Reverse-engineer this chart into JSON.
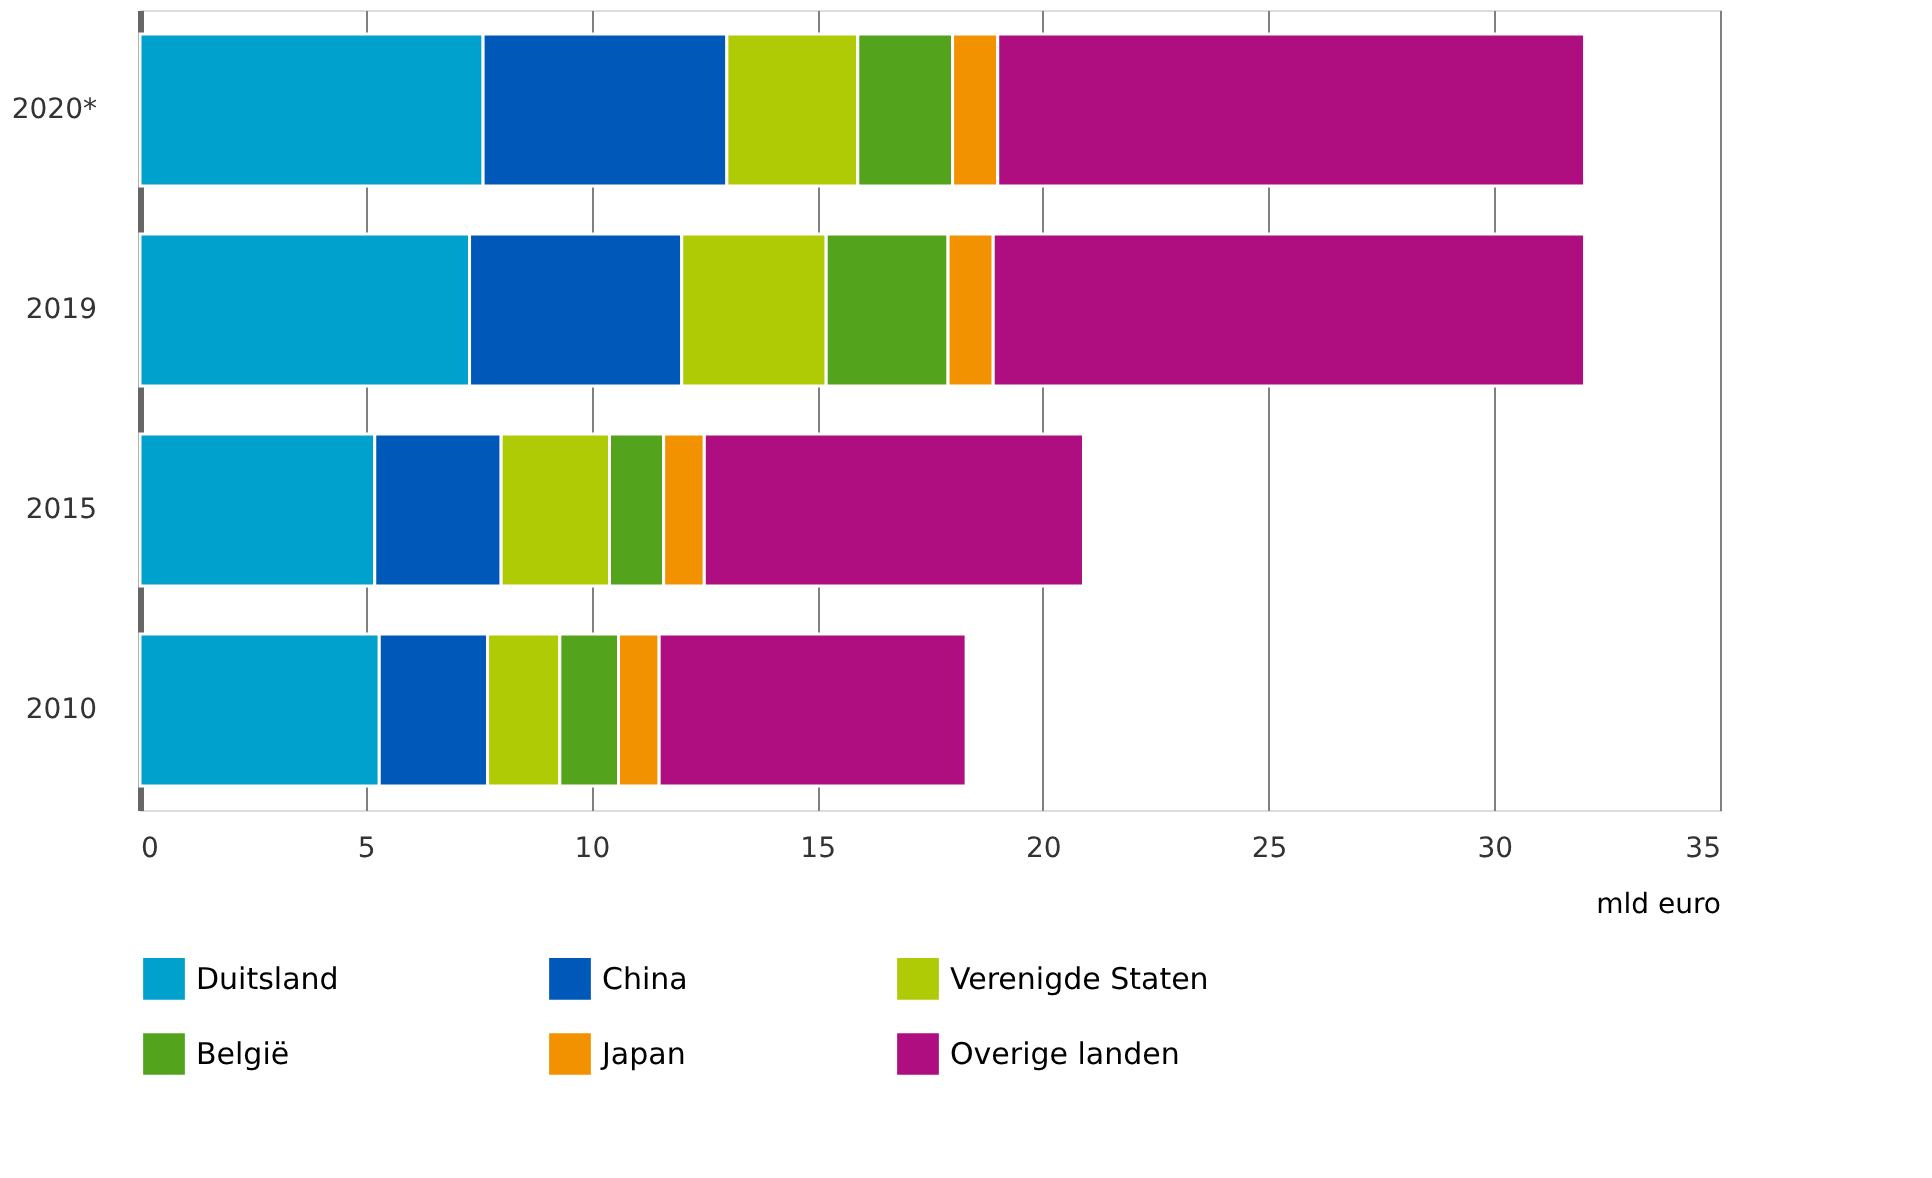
{
  "chart_data": {
    "type": "bar",
    "orientation": "horizontal",
    "stacked": true,
    "categories": [
      "2020*",
      "2019",
      "2015",
      "2010"
    ],
    "series": [
      {
        "name": "Duitsland",
        "color": "#00a1cd",
        "values": [
          7.6,
          7.3,
          5.2,
          5.3
        ]
      },
      {
        "name": "China",
        "color": "#0058b8",
        "values": [
          5.4,
          4.7,
          2.8,
          2.4
        ]
      },
      {
        "name": "Verenigde Staten",
        "color": "#afcb05",
        "values": [
          2.9,
          3.2,
          2.4,
          1.6
        ]
      },
      {
        "name": "België",
        "color": "#53a31d",
        "values": [
          2.1,
          2.7,
          1.2,
          1.3
        ]
      },
      {
        "name": "Japan",
        "color": "#f39200",
        "values": [
          1.0,
          1.0,
          0.9,
          0.9
        ]
      },
      {
        "name": "Overige landen",
        "color": "#af0e80",
        "values": [
          13.0,
          13.1,
          8.4,
          6.8
        ]
      }
    ],
    "xlim": [
      0,
      35
    ],
    "xticks": [
      0,
      5,
      10,
      15,
      20,
      25,
      30,
      35
    ],
    "xlabel": "mld euro",
    "grid": "x",
    "legend": "bottom"
  }
}
